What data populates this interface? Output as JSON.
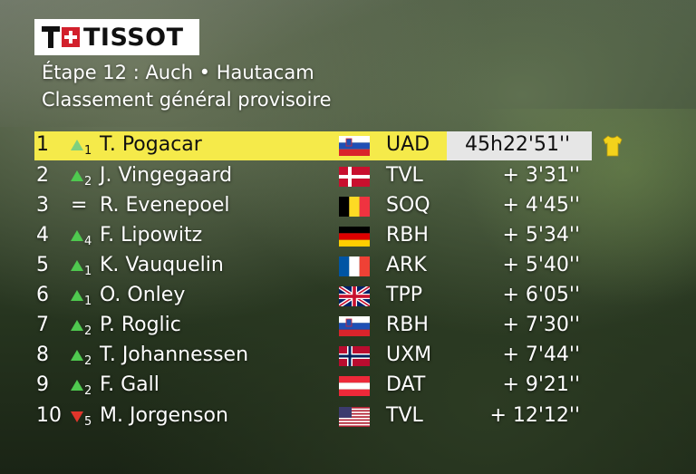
{
  "brand": {
    "logo_text": "TISSOT"
  },
  "header": {
    "stage": "Étape 12 : Auch • Hautacam",
    "subtitle": "Classement général provisoire"
  },
  "colors": {
    "leader_bg": "#f5ea4a",
    "time_bg": "#e6e6e6",
    "up": "#4fc94f",
    "down": "#e0352b"
  },
  "standings": [
    {
      "pos": "1",
      "move": "up",
      "move_n": "1",
      "name": "T. Pogacar",
      "flag": "slovenia-flag-icon",
      "team": "UAD",
      "gap": "45h22'51''"
    },
    {
      "pos": "2",
      "move": "up",
      "move_n": "2",
      "name": "J. Vingegaard",
      "flag": "denmark-flag-icon",
      "team": "TVL",
      "gap": "+ 3'31''"
    },
    {
      "pos": "3",
      "move": "same",
      "move_n": "",
      "name": "R. Evenepoel",
      "flag": "belgium-flag-icon",
      "team": "SOQ",
      "gap": "+ 4'45''"
    },
    {
      "pos": "4",
      "move": "up",
      "move_n": "4",
      "name": "F. Lipowitz",
      "flag": "germany-flag-icon",
      "team": "RBH",
      "gap": "+ 5'34''"
    },
    {
      "pos": "5",
      "move": "up",
      "move_n": "1",
      "name": "K. Vauquelin",
      "flag": "france-flag-icon",
      "team": "ARK",
      "gap": "+ 5'40''"
    },
    {
      "pos": "6",
      "move": "up",
      "move_n": "1",
      "name": "O. Onley",
      "flag": "uk-flag-icon",
      "team": "TPP",
      "gap": "+ 6'05''"
    },
    {
      "pos": "7",
      "move": "up",
      "move_n": "2",
      "name": "P. Roglic",
      "flag": "slovenia-flag-icon",
      "team": "RBH",
      "gap": "+ 7'30''"
    },
    {
      "pos": "8",
      "move": "up",
      "move_n": "2",
      "name": "T. Johannessen",
      "flag": "norway-flag-icon",
      "team": "UXM",
      "gap": "+ 7'44''"
    },
    {
      "pos": "9",
      "move": "up",
      "move_n": "2",
      "name": "F. Gall",
      "flag": "austria-flag-icon",
      "team": "DAT",
      "gap": "+ 9'21''"
    },
    {
      "pos": "10",
      "move": "down",
      "move_n": "5",
      "name": "M. Jorgenson",
      "flag": "usa-flag-icon",
      "team": "TVL",
      "gap": "+ 12'12''"
    }
  ]
}
